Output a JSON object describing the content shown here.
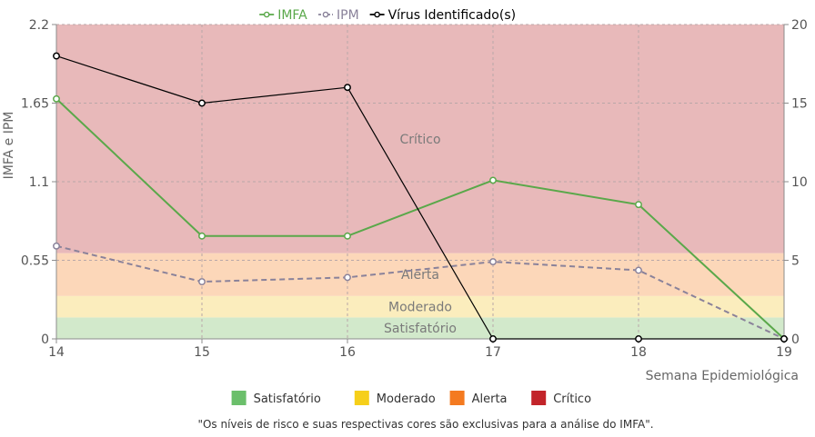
{
  "chart_data": {
    "type": "line",
    "x": [
      14,
      15,
      16,
      17,
      18,
      19
    ],
    "xlabel": "Semana Epidemiológica",
    "ylabel": "IMFA e IPM",
    "ylim": [
      0,
      2.2
    ],
    "y_ticks": [
      "0",
      "0.55",
      "1.1",
      "1.65",
      "2.2"
    ],
    "y2lim": [
      0,
      20
    ],
    "y2_ticks": [
      "0",
      "5",
      "10",
      "15",
      "20"
    ],
    "grid": true,
    "series": [
      {
        "name": "IMFA",
        "axis": "left",
        "color": "#5aa84a",
        "style": "solid",
        "values": [
          1.68,
          0.72,
          0.72,
          1.11,
          0.94,
          0.0
        ]
      },
      {
        "name": "IPM",
        "axis": "left",
        "color": "#8a829a",
        "style": "dashed",
        "values": [
          0.65,
          0.4,
          0.43,
          0.54,
          0.48,
          0.0
        ]
      },
      {
        "name": "Vírus Identificado(s)",
        "axis": "right",
        "color": "#000000",
        "style": "solid",
        "values": [
          18,
          15,
          16,
          0,
          0,
          0
        ]
      }
    ],
    "risk_bands": [
      {
        "label": "Satisfatório",
        "from": 0,
        "to": 0.15,
        "color": "#d2e9cb"
      },
      {
        "label": "Moderado",
        "from": 0.15,
        "to": 0.3,
        "color": "#fbedbd"
      },
      {
        "label": "Alerta",
        "from": 0.3,
        "to": 0.6,
        "color": "#fcd7b9"
      },
      {
        "label": "Crítico",
        "from": 0.6,
        "to": 2.2,
        "color": "#e8b9ba"
      }
    ],
    "band_legend": [
      {
        "label": "Satisfatório",
        "color": "#6bbf6b"
      },
      {
        "label": "Moderado",
        "color": "#f6cf1a"
      },
      {
        "label": "Alerta",
        "color": "#f47a20"
      },
      {
        "label": "Crítico",
        "color": "#c2242a"
      }
    ],
    "legend_position": "top-center",
    "footnote": "\"Os níveis de risco e suas respectivas cores são exclusivas para a análise do IMFA\"."
  }
}
